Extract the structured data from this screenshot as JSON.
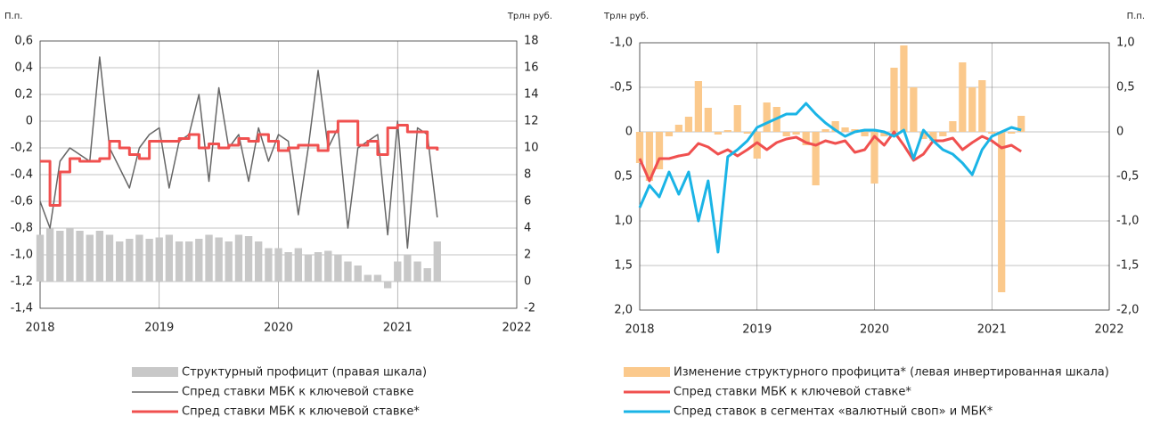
{
  "chart_data": [
    {
      "type": "combo",
      "y_label": "П.п.",
      "y2_label": "Трлн руб.",
      "x": [
        2018,
        2018.083,
        2018.167,
        2018.25,
        2018.333,
        2018.417,
        2018.5,
        2018.583,
        2018.667,
        2018.75,
        2018.833,
        2018.917,
        2019,
        2019.083,
        2019.167,
        2019.25,
        2019.333,
        2019.417,
        2019.5,
        2019.583,
        2019.667,
        2019.75,
        2019.833,
        2019.917,
        2020,
        2020.083,
        2020.167,
        2020.25,
        2020.333,
        2020.417,
        2020.5,
        2020.583,
        2020.667,
        2020.75,
        2020.833,
        2020.917,
        2021,
        2021.083,
        2021.167,
        2021.25,
        2021.333
      ],
      "xlim": [
        2018,
        2022
      ],
      "xticks": [
        2018,
        2019,
        2020,
        2021,
        2022
      ],
      "ylim": [
        -1.4,
        0.6
      ],
      "yticks": [
        {
          "value": -1.4,
          "label": "-1,4"
        },
        {
          "value": -1.2,
          "label": "-1,2"
        },
        {
          "value": -1,
          "label": "-1,0"
        },
        {
          "value": -0.8,
          "label": "-0,8"
        },
        {
          "value": -0.6,
          "label": "-0,6"
        },
        {
          "value": -0.4,
          "label": "-0,4"
        },
        {
          "value": -0.2,
          "label": "-0,2"
        },
        0,
        {
          "value": 0.2,
          "label": "0,2"
        },
        {
          "value": 0.4,
          "label": "0,4"
        },
        {
          "value": 0.6,
          "label": "0,6"
        }
      ],
      "y2lim": [
        -2,
        18
      ],
      "y2ticks": [
        -2,
        0,
        2,
        4,
        6,
        8,
        10,
        12,
        14,
        16,
        18
      ],
      "grid": true,
      "series": [
        {
          "name": "Структурный профицит (правая шкала)",
          "type": "bar",
          "axis": "y2",
          "color": "#c8c8c8",
          "values": [
            3.5,
            4,
            3.8,
            4,
            3.8,
            3.5,
            3.8,
            3.5,
            3,
            3.2,
            3.5,
            3.2,
            3.3,
            3.5,
            3,
            3,
            3.2,
            3.5,
            3.3,
            3,
            3.5,
            3.4,
            3,
            2.5,
            2.5,
            2.2,
            2.5,
            2,
            2.2,
            2.3,
            2,
            1.5,
            1.2,
            0.5,
            0.5,
            -0.5,
            1.5,
            2,
            1.5,
            1,
            3
          ]
        },
        {
          "name": "Спред ставки МБК к ключевой ставке",
          "type": "line",
          "color": "#666666",
          "values": [
            -0.6,
            -0.8,
            -0.3,
            -0.2,
            -0.25,
            -0.3,
            0.48,
            -0.2,
            -0.35,
            -0.5,
            -0.2,
            -0.1,
            -0.05,
            -0.5,
            -0.15,
            -0.1,
            0.2,
            -0.45,
            0.25,
            -0.2,
            -0.1,
            -0.45,
            -0.05,
            -0.3,
            -0.1,
            -0.15,
            -0.7,
            -0.2,
            0.38,
            -0.2,
            -0.05,
            -0.8,
            -0.2,
            -0.15,
            -0.1,
            -0.85,
            0,
            -0.95,
            -0.05,
            -0.1,
            -0.72
          ]
        },
        {
          "name": "Спред ставки МБК к ключевой ставке*",
          "type": "step",
          "color": "#f0504f",
          "values": [
            -0.3,
            -0.63,
            -0.38,
            -0.28,
            -0.3,
            -0.3,
            -0.28,
            -0.15,
            -0.2,
            -0.25,
            -0.28,
            -0.15,
            -0.15,
            -0.15,
            -0.13,
            -0.1,
            -0.2,
            -0.17,
            -0.2,
            -0.18,
            -0.13,
            -0.15,
            -0.1,
            -0.15,
            -0.22,
            -0.2,
            -0.18,
            -0.18,
            -0.22,
            -0.08,
            0,
            0,
            -0.18,
            -0.15,
            -0.25,
            -0.05,
            -0.03,
            -0.08,
            -0.08,
            -0.2,
            -0.22
          ]
        }
      ]
    },
    {
      "type": "combo",
      "y_label": "Трлн руб.",
      "y2_label": "П.п.",
      "y_inverted": true,
      "x": [
        2018,
        2018.083,
        2018.167,
        2018.25,
        2018.333,
        2018.417,
        2018.5,
        2018.583,
        2018.667,
        2018.75,
        2018.833,
        2018.917,
        2019,
        2019.083,
        2019.167,
        2019.25,
        2019.333,
        2019.417,
        2019.5,
        2019.583,
        2019.667,
        2019.75,
        2019.833,
        2019.917,
        2020,
        2020.083,
        2020.167,
        2020.25,
        2020.333,
        2020.417,
        2020.5,
        2020.583,
        2020.667,
        2020.75,
        2020.833,
        2020.917,
        2021,
        2021.083,
        2021.167,
        2021.25
      ],
      "xlim": [
        2018,
        2022
      ],
      "xticks": [
        2018,
        2019,
        2020,
        2021,
        2022
      ],
      "ylim": [
        -1,
        2
      ],
      "yticks": [
        {
          "value": -1,
          "label": "-1,0"
        },
        {
          "value": -0.5,
          "label": "-0,5"
        },
        0,
        {
          "value": 0.5,
          "label": "0,5"
        },
        {
          "value": 1,
          "label": "1,0"
        },
        {
          "value": 1.5,
          "label": "1,5"
        },
        {
          "value": 2,
          "label": "2,0"
        }
      ],
      "y2lim": [
        -2,
        1
      ],
      "y2ticks": [
        {
          "value": -2,
          "label": "-2,0"
        },
        {
          "value": -1.5,
          "label": "-1,5"
        },
        {
          "value": -1,
          "label": "-1,0"
        },
        {
          "value": -0.5,
          "label": "-0,5"
        },
        0,
        {
          "value": 0.5,
          "label": "0,5"
        },
        {
          "value": 1,
          "label": "1,0"
        }
      ],
      "grid": true,
      "series": [
        {
          "name": "Изменение структурного профицита* (левая инвертированная шкала)",
          "type": "bar",
          "color": "#fbc98c",
          "values": [
            0.35,
            0.55,
            0.42,
            0.05,
            -0.08,
            -0.17,
            -0.57,
            -0.27,
            0.03,
            -0.02,
            -0.3,
            0.02,
            0.3,
            -0.33,
            -0.28,
            0.05,
            0.03,
            0.15,
            0.6,
            -0.03,
            -0.12,
            -0.05,
            -0.03,
            0.05,
            0.58,
            0.05,
            -0.72,
            -0.97,
            -0.5,
            0.08,
            0.1,
            0.05,
            -0.12,
            -0.78,
            -0.5,
            -0.58,
            0.02,
            1.8,
            0.02,
            -0.18
          ]
        },
        {
          "name": "Спред ставки МБК к ключевой ставке*",
          "type": "line",
          "axis": "y2",
          "color": "#f0504f",
          "values": [
            -0.3,
            -0.55,
            -0.3,
            -0.3,
            -0.27,
            -0.25,
            -0.13,
            -0.17,
            -0.25,
            -0.2,
            -0.27,
            -0.2,
            -0.12,
            -0.2,
            -0.12,
            -0.08,
            -0.06,
            -0.12,
            -0.15,
            -0.1,
            -0.13,
            -0.1,
            -0.23,
            -0.2,
            -0.05,
            -0.15,
            0,
            -0.15,
            -0.32,
            -0.25,
            -0.1,
            -0.1,
            -0.07,
            -0.2,
            -0.12,
            -0.05,
            -0.1,
            -0.18,
            -0.15,
            -0.22
          ]
        },
        {
          "name": "Спред ставок в сегментах «валютный своп» и МБК*",
          "type": "line",
          "axis": "y2",
          "color": "#1ab4e6",
          "values": [
            -0.85,
            -0.6,
            -0.73,
            -0.45,
            -0.7,
            -0.45,
            -1,
            -0.55,
            -1.35,
            -0.28,
            -0.2,
            -0.1,
            0.05,
            0.1,
            0.15,
            0.2,
            0.2,
            0.32,
            0.2,
            0.1,
            0.02,
            -0.05,
            0,
            0.02,
            0.02,
            0,
            -0.05,
            0.02,
            -0.3,
            0.02,
            -0.1,
            -0.2,
            -0.25,
            -0.35,
            -0.48,
            -0.2,
            -0.05,
            0,
            0.05,
            0.02
          ]
        }
      ]
    }
  ]
}
